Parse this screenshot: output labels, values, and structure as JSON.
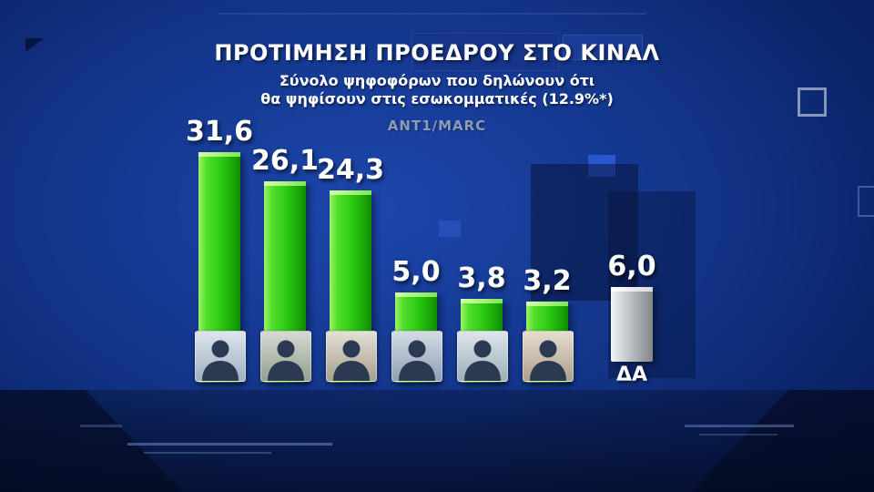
{
  "header": {
    "title": "ΠΡΟΤΙΜΗΣΗ ΠΡΟΕΔΡΟΥ ΣΤΟ ΚΙΝΑΛ",
    "subtitle_line1": "Σύνολο ψηφοφόρων που δηλώνουν ότι",
    "subtitle_line2": "θα ψηφίσουν στις εσωκομματικές (12.9%*)",
    "source": "ANT1/MARC"
  },
  "colors": {
    "bar_green": "#2bc912",
    "bar_gray": "#b9bdbf",
    "background_blue": "#123487",
    "value_text": "#ffffff",
    "source_text": "#8d9bb5"
  },
  "chart_data": {
    "type": "bar",
    "title": "ΠΡΟΤΙΜΗΣΗ ΠΡΟΕΔΡΟΥ ΣΤΟ ΚΙΝΑΛ",
    "subtitle": "Σύνολο ψηφοφόρων που δηλώνουν ότι θα ψηφίσουν στις εσωκομματικές (12.9%*)",
    "source": "ANT1/MARC",
    "categories": [
      "candidate-1",
      "candidate-2",
      "candidate-3",
      "candidate-4",
      "candidate-5",
      "candidate-6",
      "ΔΑ"
    ],
    "values": [
      31.6,
      26.1,
      24.3,
      5.0,
      3.8,
      3.2,
      6.0
    ],
    "value_labels": [
      "31,6",
      "26,1",
      "24,3",
      "5,0",
      "3,8",
      "3,2",
      "6,0"
    ],
    "bar_styles": [
      "green",
      "green",
      "green",
      "green",
      "green",
      "green",
      "gray"
    ],
    "has_photo": [
      true,
      true,
      true,
      true,
      true,
      true,
      false
    ],
    "x_axis_labels": [
      "",
      "",
      "",
      "",
      "",
      "",
      "ΔΑ"
    ],
    "ylim": [
      0,
      35
    ],
    "grid": false,
    "legend": "none"
  }
}
